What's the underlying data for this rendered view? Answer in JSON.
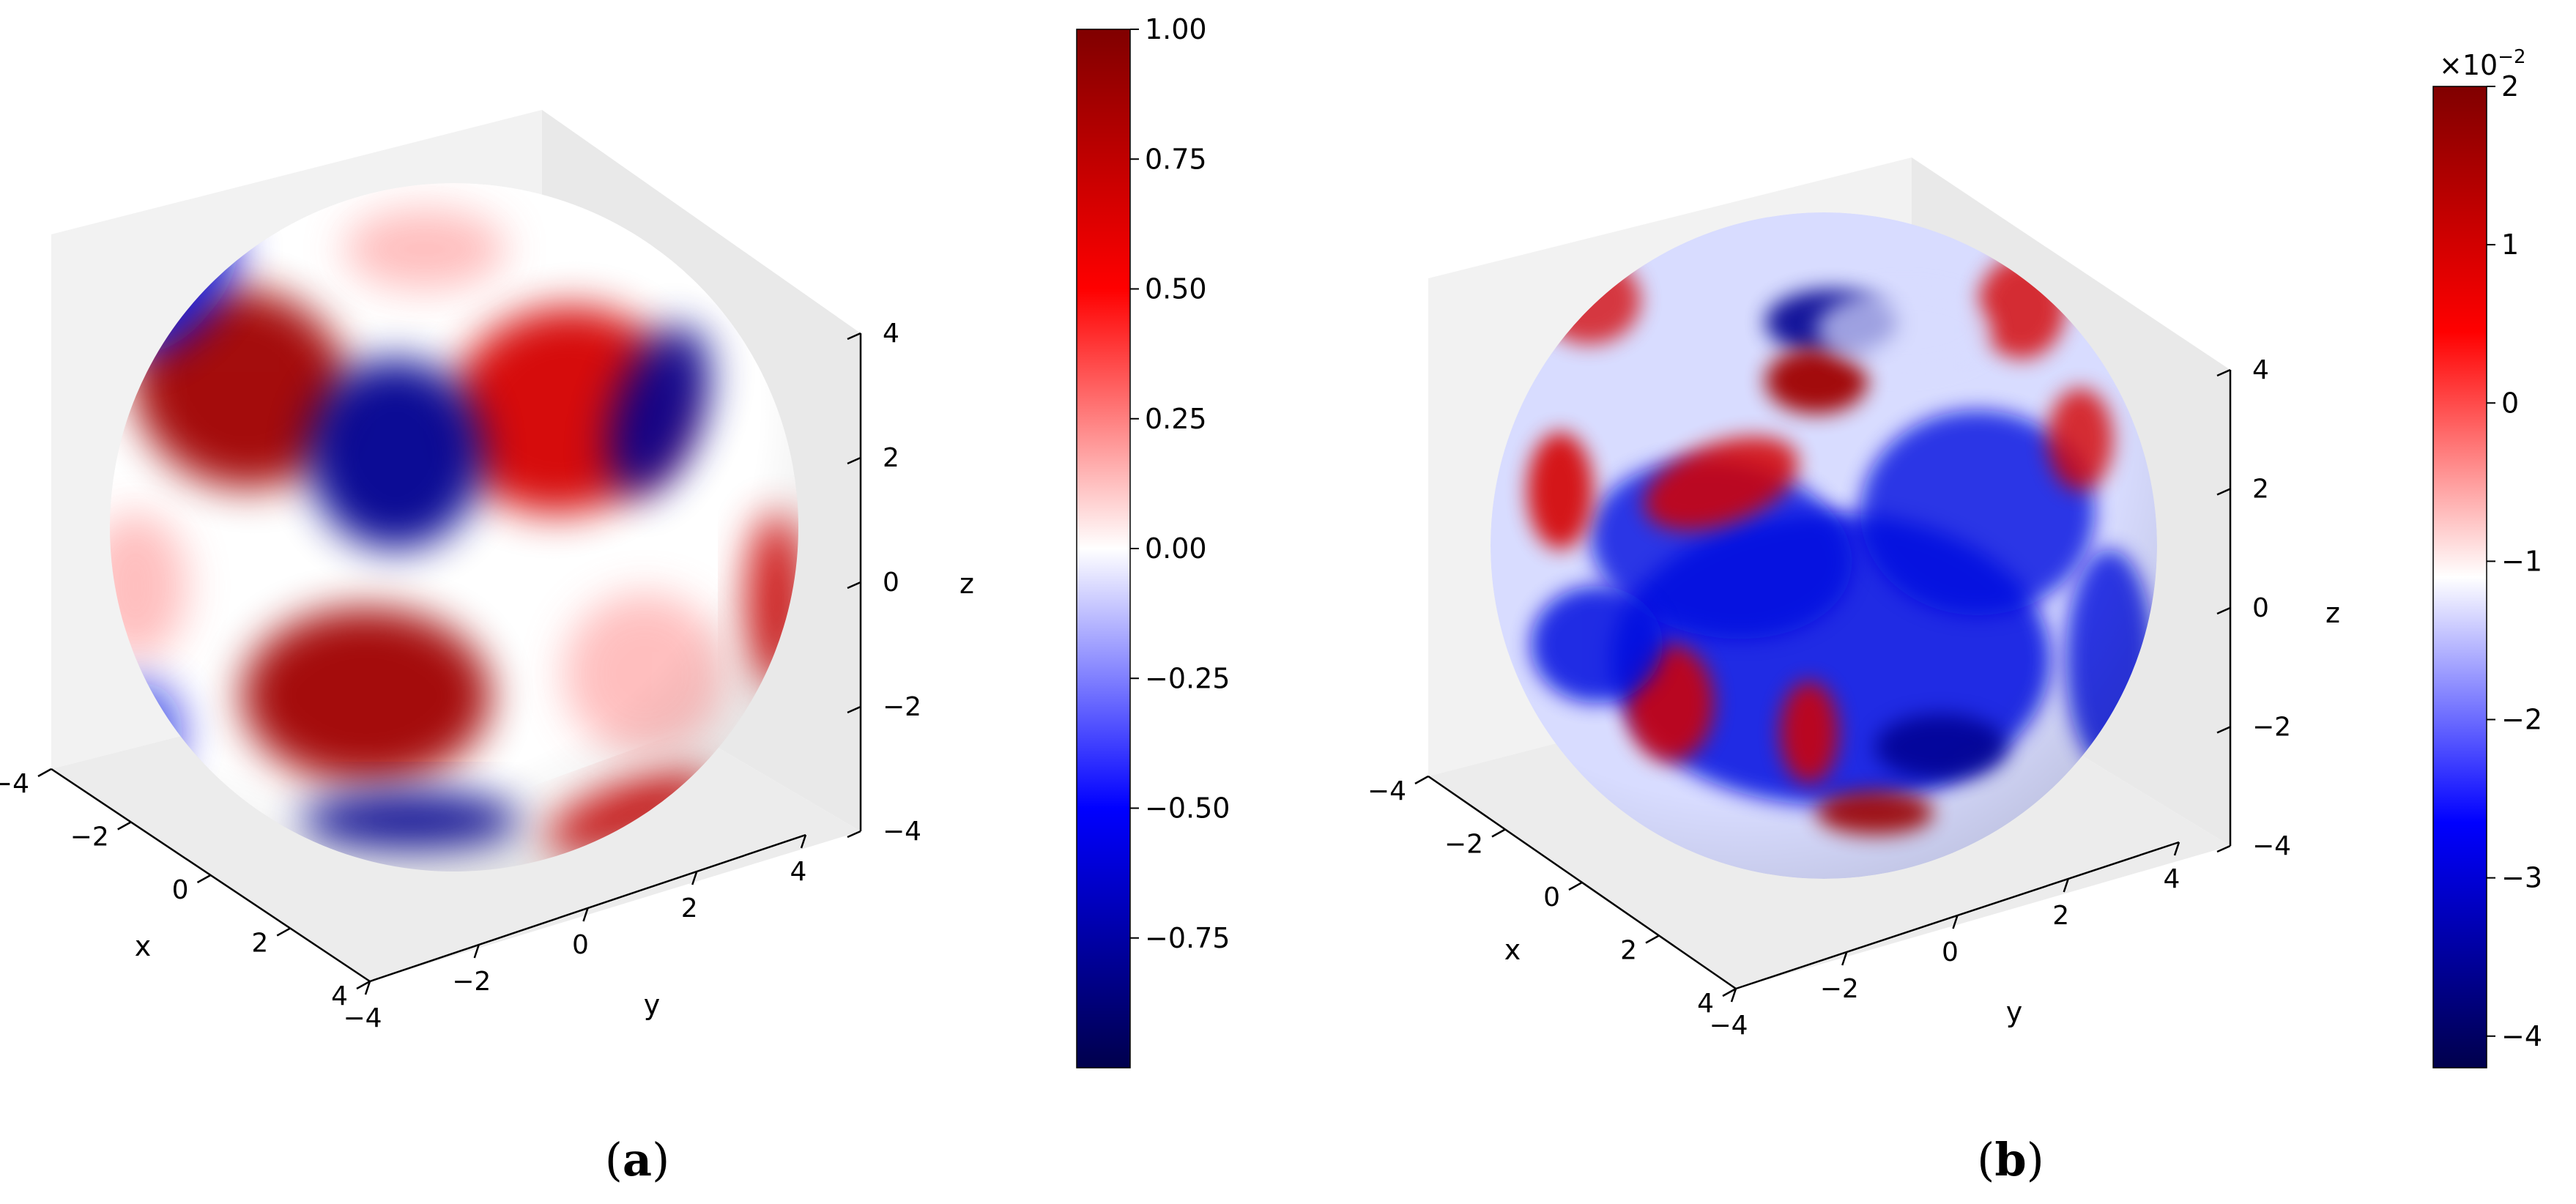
{
  "chart_data": [
    {
      "type": "scatter",
      "panel_label": "a",
      "xlabel": "x",
      "ylabel": "y",
      "zlabel": "z",
      "xlim": [
        -4,
        4
      ],
      "ylim": [
        -4,
        4
      ],
      "zlim": [
        -4,
        4
      ],
      "x_ticks": [
        "−4",
        "−2",
        "0",
        "2",
        "4"
      ],
      "y_ticks": [
        "−4",
        "−2",
        "0",
        "2",
        "4"
      ],
      "z_ticks": [
        "−4",
        "−2",
        "0",
        "2",
        "4"
      ],
      "sphere_radius": 4,
      "colorbar": {
        "colormap": "seismic",
        "range": [
          -1.0,
          1.0
        ],
        "ticks": [
          -0.75,
          -0.5,
          -0.25,
          0.0,
          0.25,
          0.5,
          0.75,
          1.0
        ],
        "tick_labels": [
          "−0.75",
          "−0.50",
          "−0.25",
          "0.00",
          "0.25",
          "0.50",
          "0.75",
          "1.00"
        ],
        "offset_label": ""
      },
      "colors": {
        "low": "#00004c",
        "mid": "#ffffff",
        "high": "#800000"
      }
    },
    {
      "type": "scatter",
      "panel_label": "b",
      "xlabel": "x",
      "ylabel": "y",
      "zlabel": "z",
      "xlim": [
        -4,
        4
      ],
      "ylim": [
        -4,
        4
      ],
      "zlim": [
        -4,
        4
      ],
      "x_ticks": [
        "−4",
        "−2",
        "0",
        "2",
        "4"
      ],
      "y_ticks": [
        "−4",
        "−2",
        "0",
        "2",
        "4"
      ],
      "z_ticks": [
        "−4",
        "−2",
        "0",
        "2",
        "4"
      ],
      "sphere_radius": 4,
      "colorbar": {
        "colormap": "seismic",
        "range": [
          -4.2,
          2.0
        ],
        "ticks": [
          -4,
          -3,
          -2,
          -1,
          0,
          1,
          2
        ],
        "tick_labels": [
          "−4",
          "−3",
          "−2",
          "−1",
          "0",
          "1",
          "2"
        ],
        "offset_label": "×10",
        "offset_exponent": "−2"
      },
      "colors": {
        "low": "#00004c",
        "mid": "#ffffff",
        "high": "#800000"
      }
    }
  ]
}
